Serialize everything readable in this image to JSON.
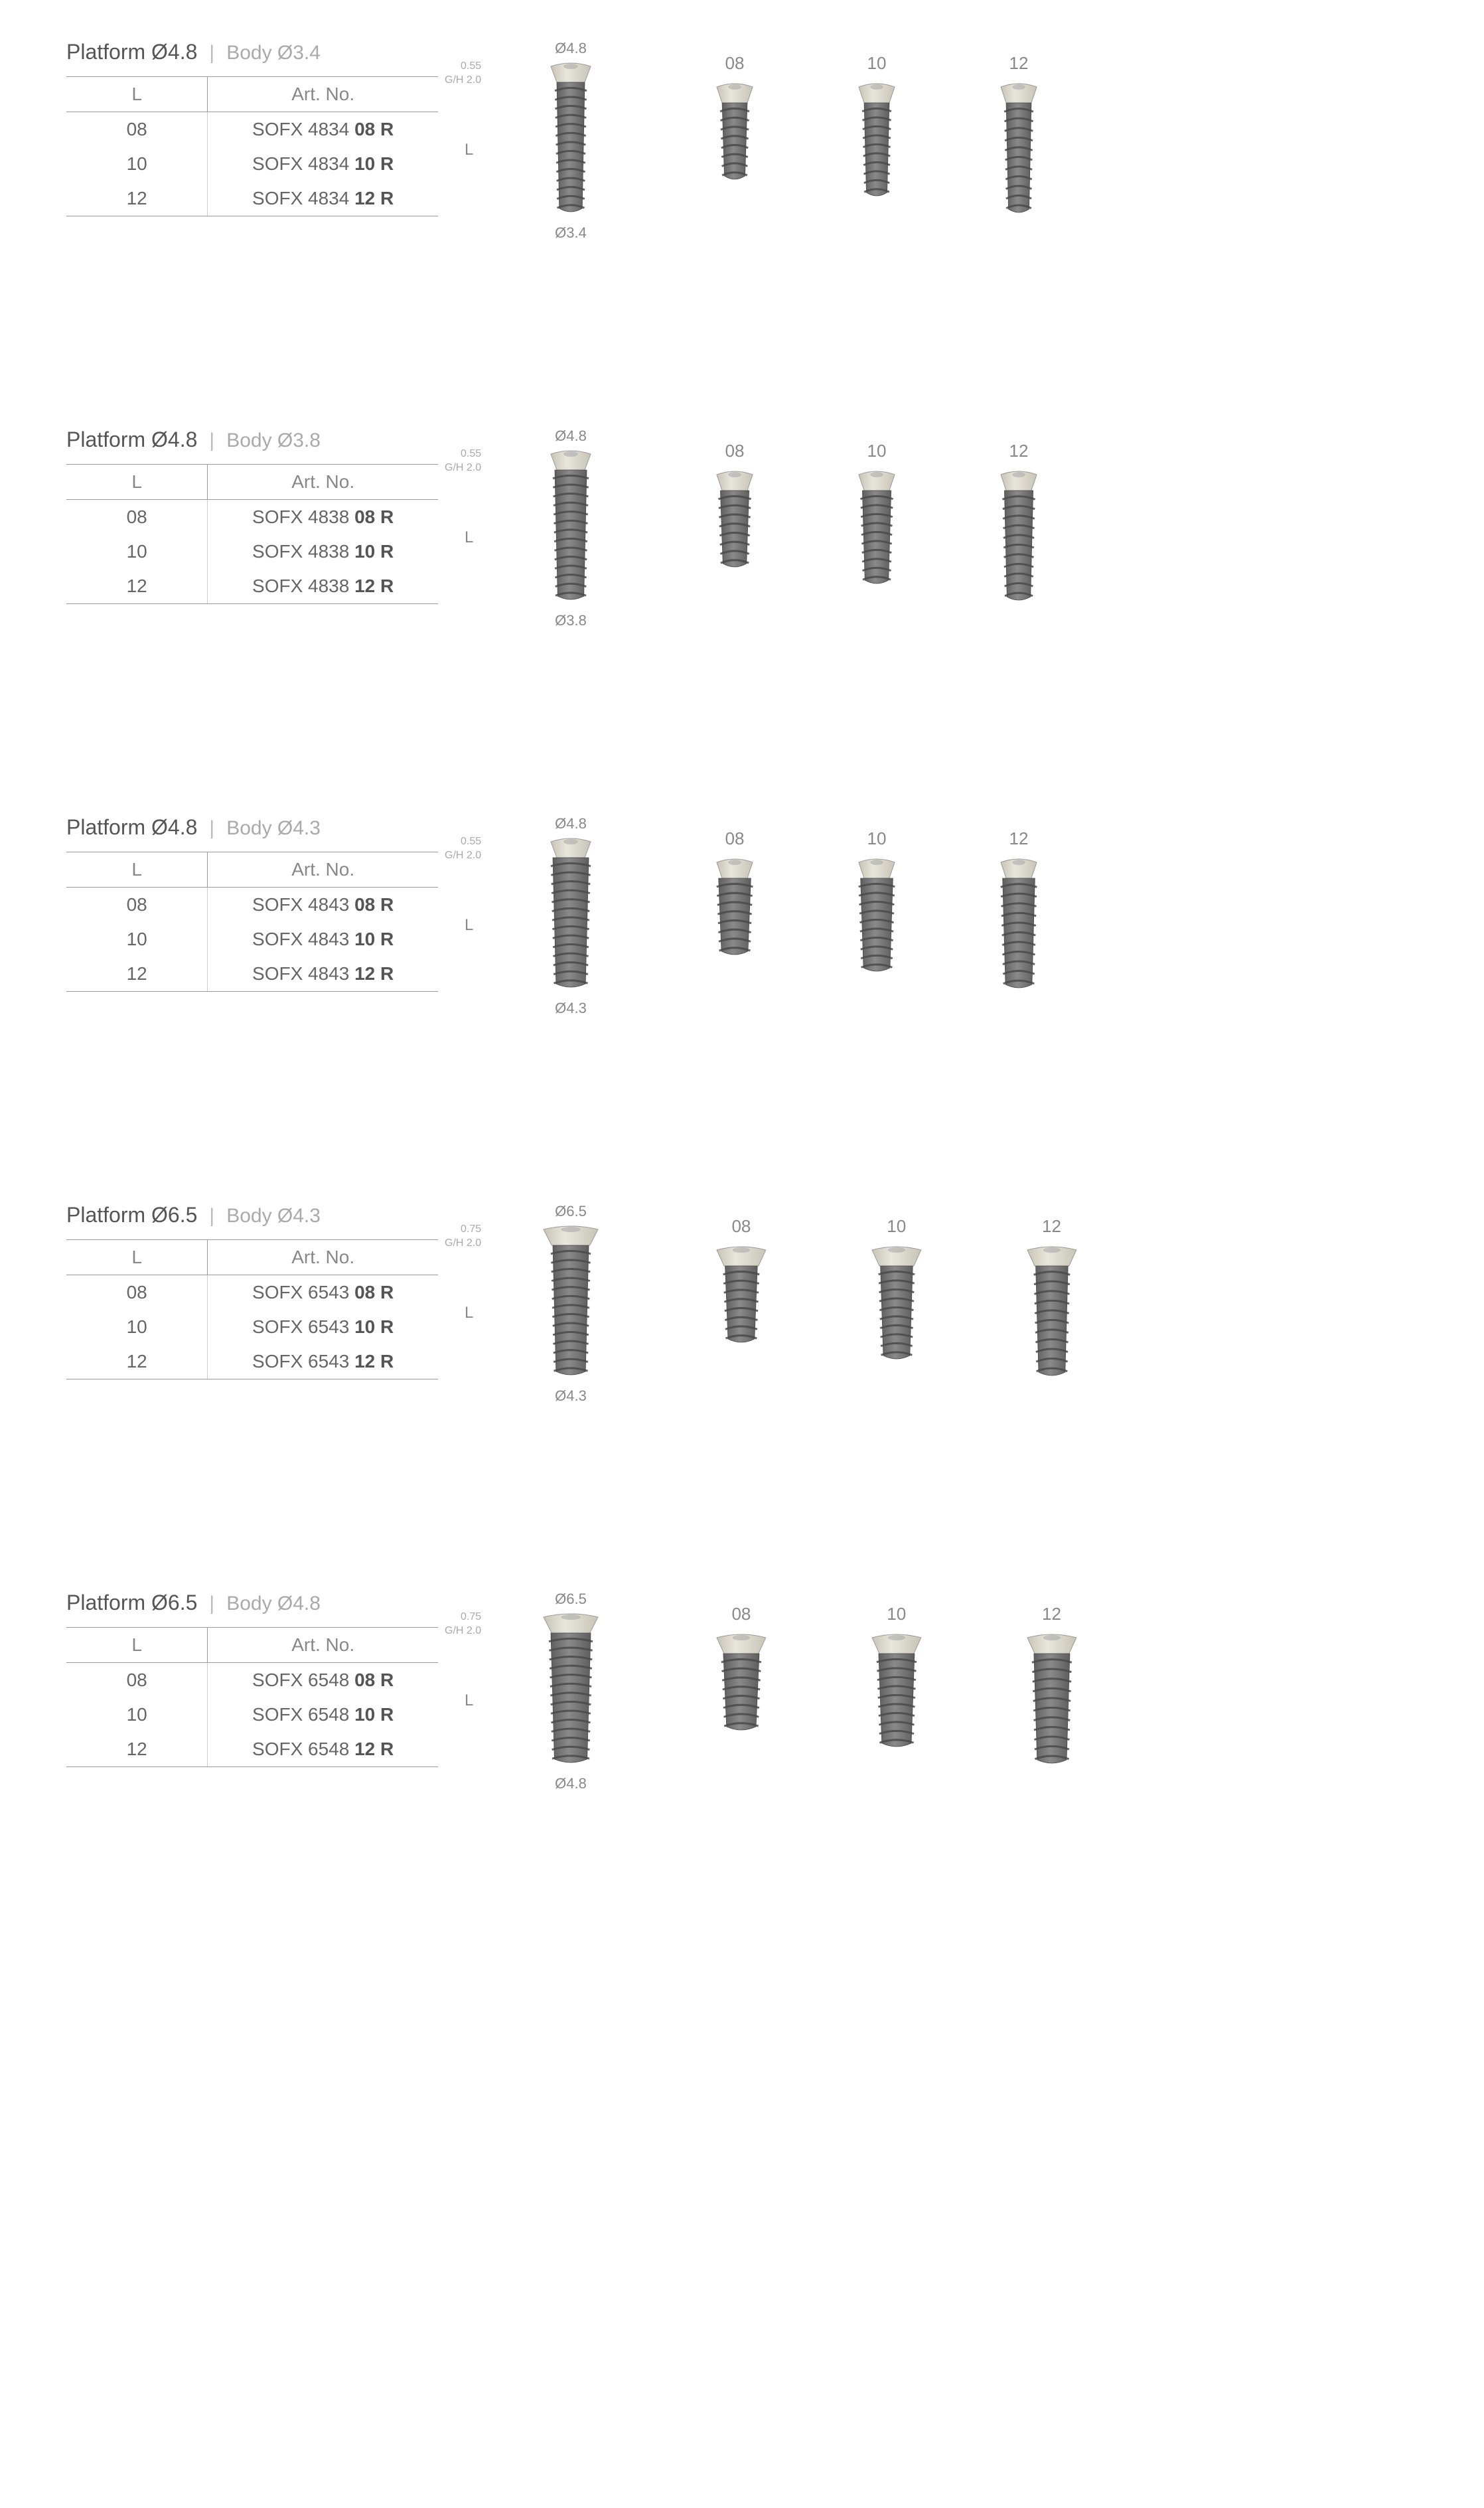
{
  "columns": [
    "L",
    "Art. No."
  ],
  "sections": [
    {
      "platform": "Platform Ø4.8",
      "body": "Body Ø3.4",
      "top_dim": "Ø4.8",
      "bot_dim": "Ø3.4",
      "collar": "0.55",
      "gh": "G/H 2.0",
      "platform_w": 60,
      "body_w": 42,
      "rows": [
        {
          "L": "08",
          "prefix": "SOFX 4834 ",
          "bold": "08 R",
          "len": 110
        },
        {
          "L": "10",
          "prefix": "SOFX 4834 ",
          "bold": "10 R",
          "len": 135
        },
        {
          "L": "12",
          "prefix": "SOFX 4834 ",
          "bold": "12 R",
          "len": 160
        }
      ]
    },
    {
      "platform": "Platform Ø4.8",
      "body": "Body Ø3.8",
      "top_dim": "Ø4.8",
      "bot_dim": "Ø3.8",
      "collar": "0.55",
      "gh": "G/H 2.0",
      "platform_w": 60,
      "body_w": 48,
      "rows": [
        {
          "L": "08",
          "prefix": "SOFX 4838 ",
          "bold": "08 R",
          "len": 110
        },
        {
          "L": "10",
          "prefix": "SOFX 4838 ",
          "bold": "10 R",
          "len": 135
        },
        {
          "L": "12",
          "prefix": "SOFX 4838 ",
          "bold": "12 R",
          "len": 160
        }
      ]
    },
    {
      "platform": "Platform Ø4.8",
      "body": "Body Ø4.3",
      "top_dim": "Ø4.8",
      "bot_dim": "Ø4.3",
      "collar": "0.55",
      "gh": "G/H 2.0",
      "platform_w": 60,
      "body_w": 54,
      "rows": [
        {
          "L": "08",
          "prefix": "SOFX 4843 ",
          "bold": "08 R",
          "len": 110
        },
        {
          "L": "10",
          "prefix": "SOFX 4843 ",
          "bold": "10 R",
          "len": 135
        },
        {
          "L": "12",
          "prefix": "SOFX 4843 ",
          "bold": "12 R",
          "len": 160
        }
      ]
    },
    {
      "platform": "Platform Ø6.5",
      "body": "Body Ø4.3",
      "top_dim": "Ø6.5",
      "bot_dim": "Ø4.3",
      "collar": "0.75",
      "gh": "G/H 2.0",
      "platform_w": 82,
      "body_w": 54,
      "rows": [
        {
          "L": "08",
          "prefix": "SOFX 6543 ",
          "bold": "08 R",
          "len": 110
        },
        {
          "L": "10",
          "prefix": "SOFX 6543 ",
          "bold": "10 R",
          "len": 135
        },
        {
          "L": "12",
          "prefix": "SOFX 6543 ",
          "bold": "12 R",
          "len": 160
        }
      ]
    },
    {
      "platform": "Platform Ø6.5",
      "body": "Body Ø4.8",
      "top_dim": "Ø6.5",
      "bot_dim": "Ø4.8",
      "collar": "0.75",
      "gh": "G/H 2.0",
      "platform_w": 82,
      "body_w": 60,
      "rows": [
        {
          "L": "08",
          "prefix": "SOFX 6548 ",
          "bold": "08 R",
          "len": 110
        },
        {
          "L": "10",
          "prefix": "SOFX 6548 ",
          "bold": "10 R",
          "len": 135
        },
        {
          "L": "12",
          "prefix": "SOFX 6548 ",
          "bold": "12 R",
          "len": 160
        }
      ]
    }
  ],
  "colors": {
    "head_light": "#e8e6dc",
    "head_dark": "#c8c4b6",
    "body_light": "#8a8a8a",
    "body_dark": "#5e5e5e",
    "thread": "#4a4a4a"
  }
}
